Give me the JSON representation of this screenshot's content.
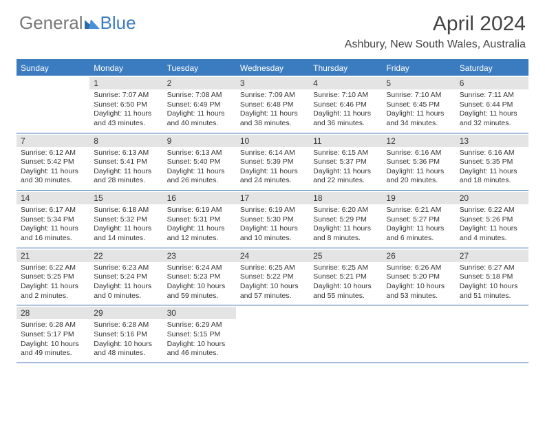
{
  "logo": {
    "part1": "General",
    "part2": "Blue"
  },
  "month_title": "April 2024",
  "location": "Ashbury, New South Wales, Australia",
  "colors": {
    "accent": "#3b7bbf",
    "daynum_bg": "#e4e4e4",
    "border": "#2f6aa8",
    "text": "#333333",
    "header_text": "#444444",
    "bg": "#ffffff"
  },
  "day_headers": [
    "Sunday",
    "Monday",
    "Tuesday",
    "Wednesday",
    "Thursday",
    "Friday",
    "Saturday"
  ],
  "weeks": [
    [
      {
        "empty": true
      },
      {
        "n": "1",
        "sunrise": "7:07 AM",
        "sunset": "6:50 PM",
        "dh": "11",
        "dm": "43"
      },
      {
        "n": "2",
        "sunrise": "7:08 AM",
        "sunset": "6:49 PM",
        "dh": "11",
        "dm": "40"
      },
      {
        "n": "3",
        "sunrise": "7:09 AM",
        "sunset": "6:48 PM",
        "dh": "11",
        "dm": "38"
      },
      {
        "n": "4",
        "sunrise": "7:10 AM",
        "sunset": "6:46 PM",
        "dh": "11",
        "dm": "36"
      },
      {
        "n": "5",
        "sunrise": "7:10 AM",
        "sunset": "6:45 PM",
        "dh": "11",
        "dm": "34"
      },
      {
        "n": "6",
        "sunrise": "7:11 AM",
        "sunset": "6:44 PM",
        "dh": "11",
        "dm": "32"
      }
    ],
    [
      {
        "n": "7",
        "sunrise": "6:12 AM",
        "sunset": "5:42 PM",
        "dh": "11",
        "dm": "30"
      },
      {
        "n": "8",
        "sunrise": "6:13 AM",
        "sunset": "5:41 PM",
        "dh": "11",
        "dm": "28"
      },
      {
        "n": "9",
        "sunrise": "6:13 AM",
        "sunset": "5:40 PM",
        "dh": "11",
        "dm": "26"
      },
      {
        "n": "10",
        "sunrise": "6:14 AM",
        "sunset": "5:39 PM",
        "dh": "11",
        "dm": "24"
      },
      {
        "n": "11",
        "sunrise": "6:15 AM",
        "sunset": "5:37 PM",
        "dh": "11",
        "dm": "22"
      },
      {
        "n": "12",
        "sunrise": "6:16 AM",
        "sunset": "5:36 PM",
        "dh": "11",
        "dm": "20"
      },
      {
        "n": "13",
        "sunrise": "6:16 AM",
        "sunset": "5:35 PM",
        "dh": "11",
        "dm": "18"
      }
    ],
    [
      {
        "n": "14",
        "sunrise": "6:17 AM",
        "sunset": "5:34 PM",
        "dh": "11",
        "dm": "16"
      },
      {
        "n": "15",
        "sunrise": "6:18 AM",
        "sunset": "5:32 PM",
        "dh": "11",
        "dm": "14"
      },
      {
        "n": "16",
        "sunrise": "6:19 AM",
        "sunset": "5:31 PM",
        "dh": "11",
        "dm": "12"
      },
      {
        "n": "17",
        "sunrise": "6:19 AM",
        "sunset": "5:30 PM",
        "dh": "11",
        "dm": "10"
      },
      {
        "n": "18",
        "sunrise": "6:20 AM",
        "sunset": "5:29 PM",
        "dh": "11",
        "dm": "8"
      },
      {
        "n": "19",
        "sunrise": "6:21 AM",
        "sunset": "5:27 PM",
        "dh": "11",
        "dm": "6"
      },
      {
        "n": "20",
        "sunrise": "6:22 AM",
        "sunset": "5:26 PM",
        "dh": "11",
        "dm": "4"
      }
    ],
    [
      {
        "n": "21",
        "sunrise": "6:22 AM",
        "sunset": "5:25 PM",
        "dh": "11",
        "dm": "2"
      },
      {
        "n": "22",
        "sunrise": "6:23 AM",
        "sunset": "5:24 PM",
        "dh": "11",
        "dm": "0"
      },
      {
        "n": "23",
        "sunrise": "6:24 AM",
        "sunset": "5:23 PM",
        "dh": "10",
        "dm": "59"
      },
      {
        "n": "24",
        "sunrise": "6:25 AM",
        "sunset": "5:22 PM",
        "dh": "10",
        "dm": "57"
      },
      {
        "n": "25",
        "sunrise": "6:25 AM",
        "sunset": "5:21 PM",
        "dh": "10",
        "dm": "55"
      },
      {
        "n": "26",
        "sunrise": "6:26 AM",
        "sunset": "5:20 PM",
        "dh": "10",
        "dm": "53"
      },
      {
        "n": "27",
        "sunrise": "6:27 AM",
        "sunset": "5:18 PM",
        "dh": "10",
        "dm": "51"
      }
    ],
    [
      {
        "n": "28",
        "sunrise": "6:28 AM",
        "sunset": "5:17 PM",
        "dh": "10",
        "dm": "49"
      },
      {
        "n": "29",
        "sunrise": "6:28 AM",
        "sunset": "5:16 PM",
        "dh": "10",
        "dm": "48"
      },
      {
        "n": "30",
        "sunrise": "6:29 AM",
        "sunset": "5:15 PM",
        "dh": "10",
        "dm": "46"
      },
      {
        "empty": true
      },
      {
        "empty": true
      },
      {
        "empty": true
      },
      {
        "empty": true
      }
    ]
  ],
  "labels": {
    "sunrise": "Sunrise:",
    "sunset": "Sunset:",
    "daylight_prefix": "Daylight:",
    "hours_word": "hours",
    "and_word": "and",
    "minutes_word": "minutes."
  }
}
